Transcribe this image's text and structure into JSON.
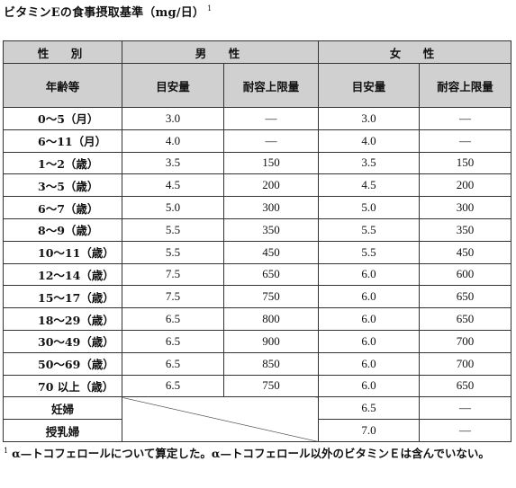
{
  "title": "ビタミンEの食事摂取基準（mg/日）",
  "title_footnote_mark": "1",
  "header": {
    "sex_label": "性　別",
    "male_label": "男　性",
    "female_label": "女　性",
    "age_label": "年齢等",
    "ai_label": "目安量",
    "ul_label": "耐容上限量"
  },
  "rows": [
    {
      "age": "0～5（月）",
      "m_ai": "3.0",
      "m_ul": "—",
      "f_ai": "3.0",
      "f_ul": "—"
    },
    {
      "age": "6～11（月）",
      "m_ai": "4.0",
      "m_ul": "—",
      "f_ai": "4.0",
      "f_ul": "—"
    },
    {
      "age": "1～2（歳）",
      "m_ai": "3.5",
      "m_ul": "150",
      "f_ai": "3.5",
      "f_ul": "150"
    },
    {
      "age": "3～5（歳）",
      "m_ai": "4.5",
      "m_ul": "200",
      "f_ai": "4.5",
      "f_ul": "200"
    },
    {
      "age": "6～7（歳）",
      "m_ai": "5.0",
      "m_ul": "300",
      "f_ai": "5.0",
      "f_ul": "300"
    },
    {
      "age": "8～9（歳）",
      "m_ai": "5.5",
      "m_ul": "350",
      "f_ai": "5.5",
      "f_ul": "350"
    },
    {
      "age": "10～11（歳）",
      "m_ai": "5.5",
      "m_ul": "450",
      "f_ai": "5.5",
      "f_ul": "450"
    },
    {
      "age": "12～14（歳）",
      "m_ai": "7.5",
      "m_ul": "650",
      "f_ai": "6.0",
      "f_ul": "600"
    },
    {
      "age": "15～17（歳）",
      "m_ai": "7.5",
      "m_ul": "750",
      "f_ai": "6.0",
      "f_ul": "650"
    },
    {
      "age": "18～29（歳）",
      "m_ai": "6.5",
      "m_ul": "800",
      "f_ai": "6.0",
      "f_ul": "650"
    },
    {
      "age": "30～49（歳）",
      "m_ai": "6.5",
      "m_ul": "900",
      "f_ai": "6.0",
      "f_ul": "700"
    },
    {
      "age": "50～69（歳）",
      "m_ai": "6.5",
      "m_ul": "850",
      "f_ai": "6.0",
      "f_ul": "700"
    },
    {
      "age": "70 以上（歳）",
      "m_ai": "6.5",
      "m_ul": "750",
      "f_ai": "6.0",
      "f_ul": "650"
    }
  ],
  "pregnant": {
    "label": "妊婦",
    "f_ai": "6.5",
    "f_ul": "—"
  },
  "lactating": {
    "label": "授乳婦",
    "f_ai": "7.0",
    "f_ul": "—"
  },
  "footnote": {
    "mark": "1",
    "text": "α—トコフェロールについて算定した。α—トコフェロール以外のビタミンＥは含んでいない。"
  }
}
